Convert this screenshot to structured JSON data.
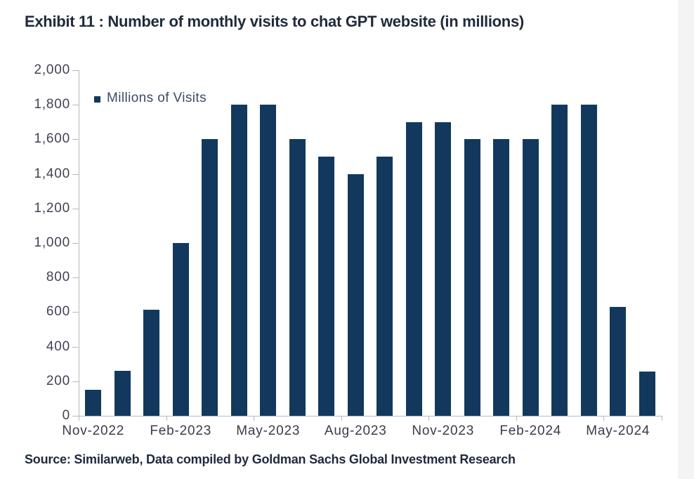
{
  "page": {
    "background": "#ffffff",
    "edge_strip_color": "#f4f4f5"
  },
  "source": "Source: Similarweb, Data compiled by Goldman Sachs Global Investment Research",
  "chart_data": {
    "type": "bar",
    "title": "Exhibit 11 : Number of monthly visits to chat GPT website (in millions)",
    "legend": "Millions of Visits",
    "legend_position": "top-left-inside",
    "grid": false,
    "xlabel": "",
    "ylabel": "",
    "ylim": [
      0,
      2000
    ],
    "y_tick_step": 200,
    "y_tick_labels": [
      "2,000",
      "1,800",
      "1,600",
      "1,400",
      "1,200",
      "1,000",
      "800",
      "600",
      "400",
      "200",
      "0"
    ],
    "categories": [
      "Nov-2022",
      "Dec-2022",
      "Jan-2023",
      "Feb-2023",
      "Mar-2023",
      "Apr-2023",
      "May-2023",
      "Jun-2023",
      "Jul-2023",
      "Aug-2023",
      "Sep-2023",
      "Oct-2023",
      "Nov-2023",
      "Dec-2023",
      "Jan-2024",
      "Feb-2024",
      "Mar-2024",
      "Apr-2024",
      "May-2024",
      "Jun-2024"
    ],
    "values": [
      150,
      260,
      615,
      1000,
      1600,
      1800,
      1800,
      1600,
      1500,
      1400,
      1500,
      1700,
      1700,
      1600,
      1600,
      1600,
      1800,
      1800,
      630,
      255
    ],
    "x_tick_labels": [
      "Nov-2022",
      "Feb-2023",
      "May-2023",
      "Aug-2023",
      "Nov-2023",
      "Feb-2024",
      "May-2024"
    ],
    "x_tick_category_indices": [
      0,
      3,
      6,
      9,
      12,
      15,
      18
    ],
    "bar_color": "#12395d",
    "colors": {
      "title": "#202a3a",
      "axis_label": "#3b3b4c",
      "y_label": "#424255",
      "legend_text": "#3a4a66",
      "axis_line": "#b8b8b8",
      "source": "#1f2a3e"
    }
  }
}
